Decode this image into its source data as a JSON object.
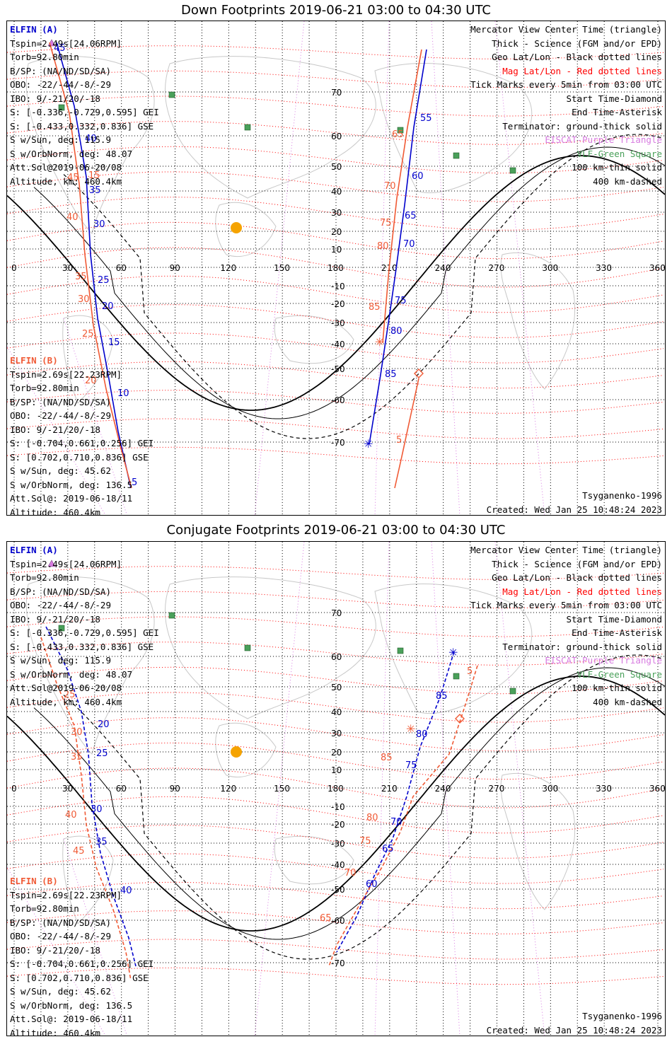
{
  "panels": [
    {
      "title": "Down Footprints 2019-06-21 03:00 to 04:30 UTC",
      "elfin_a": {
        "name": "ELFIN (A)",
        "lines": [
          "Tspin=2.49s[24.06RPM]",
          "Torb=92.80min",
          "B/SP: (NA/ND/SD/SA)",
          "OBO: -22/-44/-8/-29",
          "IBO: 9/-21/20/-18",
          "S: [-0.336,-0.729,0.595] GEI",
          "S: [-0.433,0.332,0.836] GSE",
          "S w/Sun, deg: 115.9",
          "S w/OrbNorm, deg: 48.07",
          "Att.Sol@2019-06-20/08",
          "Altitude, km: 460.4km"
        ]
      },
      "elfin_b": {
        "name": "ELFIN (B)",
        "lines": [
          "Tspin=2.69s[22.23RPM]",
          "Torb=92.80min",
          "B/SP: (NA/ND/SD/SA)",
          "OBO: -22/-44/-8/-29",
          "IBO: 9/-21/20/-18",
          "S: [-0.704,0.661,0.256] GEI",
          "S: [0.702,0.710,0.836] GSE",
          "S w/Sun, deg: 45.62",
          "S w/OrbNorm, deg: 136.5",
          "Att.Sol@: 2019-06-18/11",
          "Altitude: 460.4km"
        ]
      },
      "model": "Tsyganenko-1996",
      "created": "Created: Wed Jan 25 10:48:24 2023"
    },
    {
      "title": "Conjugate Footprints 2019-06-21 03:00 to 04:30 UTC",
      "elfin_a": {
        "name": "ELFIN (A)",
        "lines": [
          "Tspin=2.49s[24.06RPM]",
          "Torb=92.80min",
          "B/SP: (NA/ND/SD/SA)",
          "OBO: -22/-44/-8/-29",
          "IBO: 9/-21/20/-18",
          "S: [-0.336,-0.729,0.595] GEI",
          "S: [-0.433,0.332,0.836] GSE",
          "S w/Sun, deg: 115.9",
          "S w/OrbNorm, deg: 48.07",
          "Att.Sol@2019-06-20/08",
          "Altitude, km: 460.4km"
        ]
      },
      "elfin_b": {
        "name": "ELFIN (B)",
        "lines": [
          "Tspin=2.69s[22.23RPM]",
          "Torb=92.80min",
          "B/SP: (NA/ND/SD/SA)",
          "OBO: -22/-44/-8/-29",
          "IBO: 9/-21/20/-18",
          "S: [-0.704,0.661,0.256] GEI",
          "S: [0.702,0.710,0.836] GSE",
          "S w/Sun, deg: 45.62",
          "S w/OrbNorm, deg: 136.5",
          "Att.Sol@: 2019-06-18/11",
          "Altitude: 460.4km"
        ]
      },
      "model": "Tsyganenko-1996",
      "created": "Created: Wed Jan 25 10:48:24 2023"
    }
  ],
  "legend": [
    {
      "text": "Mercator View Center Time (triangle)",
      "color": "#000000"
    },
    {
      "text": "Thick - Science (FGM and/or EPD)",
      "color": "#000000"
    },
    {
      "text": "Geo Lat/Lon - Black dotted lines",
      "color": "#000000"
    },
    {
      "text": "Mag Lat/Lon - Red dotted lines",
      "color": "#ff0000"
    },
    {
      "text": "Tick Marks every 5min from 03:00 UTC",
      "color": "#000000"
    },
    {
      "text": "Start Time-Diamond",
      "color": "#000000"
    },
    {
      "text": "End Time-Asterisk",
      "color": "#000000"
    },
    {
      "text": "Terminator: ground-thick solid",
      "color": "#000000"
    },
    {
      "text": "EISCAT-Purple Triangle",
      "color": "#d77be0"
    },
    {
      "text": "VLF-Green Square",
      "color": "#4aa05a"
    },
    {
      "text": "100 km-thin solid",
      "color": "#000000"
    },
    {
      "text": "400 km-dashed",
      "color": "#000000"
    }
  ],
  "lon_ticks": [
    "0",
    "30",
    "60",
    "90",
    "120",
    "150",
    "180",
    "210",
    "240",
    "270",
    "300",
    "330",
    "360"
  ],
  "lat_ticks": [
    "70",
    "60",
    "50",
    "40",
    "30",
    "20",
    "10",
    "-10",
    "-20",
    "-30",
    "-40",
    "-50",
    "-60",
    "-70"
  ],
  "colors": {
    "elfin_a": "#0000cc",
    "elfin_b": "#f05a35",
    "mag_grid": "#ff0000",
    "sun": "#f5a300",
    "vlf": "#4aa05a",
    "eiscat": "#d77be0"
  },
  "tracks": {
    "down": {
      "a_left_labels": [
        "45",
        "40",
        "35",
        "30",
        "25",
        "20",
        "15",
        "10",
        "5"
      ],
      "b_left_labels": [
        "45",
        "40",
        "35",
        "30",
        "25",
        "20",
        "15"
      ],
      "a_right_labels": [
        "55",
        "60",
        "65",
        "70",
        "75",
        "80",
        "85"
      ],
      "b_right_labels": [
        "65",
        "70",
        "75",
        "80",
        "85",
        "5"
      ]
    },
    "conj": {
      "a_left_labels": [
        "20",
        "25",
        "30",
        "35",
        "40"
      ],
      "b_left_labels": [
        "25",
        "30",
        "35",
        "40",
        "45"
      ],
      "a_right_labels": [
        "85",
        "80",
        "75",
        "70",
        "65",
        "60"
      ],
      "b_right_labels": [
        "5",
        "85",
        "80",
        "75",
        "70",
        "65"
      ]
    }
  }
}
